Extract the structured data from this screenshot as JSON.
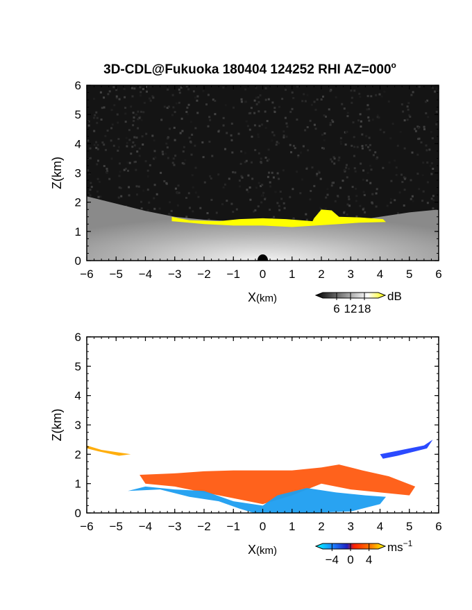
{
  "chart_data": [
    {
      "type": "heatmap",
      "title": "3D-CDL@Fukuoka 180404 124252 RHI AZ=000",
      "title_degree": "o",
      "xlabel_main": "X",
      "xlabel_unit": "(km)",
      "ylabel": "Z(km)",
      "xlim": [
        -6,
        6
      ],
      "ylim": [
        0,
        6
      ],
      "xticks": [
        -6,
        -5,
        -4,
        -3,
        -2,
        -1,
        0,
        1,
        2,
        3,
        4,
        5,
        6
      ],
      "yticks": [
        0,
        1,
        2,
        3,
        4,
        5,
        6
      ],
      "background": "#141414",
      "highlight_color": "#ffff00",
      "colorbar": {
        "unit": "dB",
        "ticks": [
          6,
          12,
          18
        ],
        "range": [
          0,
          24
        ],
        "colors": [
          "#000000",
          "#ffffff"
        ]
      },
      "layers": [
        {
          "name": "aerosol-signal",
          "color": "#bdbdbd",
          "polygon": [
            [
              -6,
              2.2
            ],
            [
              -5,
              1.95
            ],
            [
              -4,
              1.7
            ],
            [
              -3,
              1.5
            ],
            [
              -2,
              1.4
            ],
            [
              -1,
              1.35
            ],
            [
              0,
              1.3
            ],
            [
              1,
              1.3
            ],
            [
              2,
              1.3
            ],
            [
              3,
              1.35
            ],
            [
              4,
              1.5
            ],
            [
              5,
              1.65
            ],
            [
              6,
              1.75
            ],
            [
              6,
              0
            ],
            [
              -6,
              0
            ]
          ]
        },
        {
          "name": "cloud-base",
          "color": "#ffff00",
          "polygon": [
            [
              -3.1,
              1.5
            ],
            [
              -2.5,
              1.38
            ],
            [
              -1.5,
              1.35
            ],
            [
              -0.8,
              1.42
            ],
            [
              0,
              1.45
            ],
            [
              0.8,
              1.42
            ],
            [
              1.7,
              1.35
            ],
            [
              1.75,
              1.45
            ],
            [
              2.0,
              1.75
            ],
            [
              2.35,
              1.72
            ],
            [
              2.6,
              1.5
            ],
            [
              3.3,
              1.48
            ],
            [
              4.1,
              1.42
            ],
            [
              4.2,
              1.32
            ],
            [
              3.3,
              1.3
            ],
            [
              2.6,
              1.25
            ],
            [
              1.8,
              1.2
            ],
            [
              1.0,
              1.15
            ],
            [
              0,
              1.2
            ],
            [
              -1.0,
              1.2
            ],
            [
              -2.0,
              1.25
            ],
            [
              -3.1,
              1.35
            ]
          ]
        }
      ]
    },
    {
      "type": "heatmap",
      "xlabel_main": "X",
      "xlabel_unit": "(km)",
      "ylabel": "Z(km)",
      "xlim": [
        -6,
        6
      ],
      "ylim": [
        0,
        6
      ],
      "xticks": [
        -6,
        -5,
        -4,
        -3,
        -2,
        -1,
        0,
        1,
        2,
        3,
        4,
        5,
        6
      ],
      "yticks": [
        0,
        1,
        2,
        3,
        4,
        5,
        6
      ],
      "background": "#ffffff",
      "colorbar": {
        "unit": "ms",
        "unit_exp": "−1",
        "ticks": [
          "−4",
          "0",
          "4"
        ],
        "range": [
          -6,
          6
        ],
        "colors": [
          "#00ffff",
          "#0050ff",
          "#2020c0",
          "#ff2000",
          "#ff8000",
          "#ffff00"
        ]
      },
      "layers": [
        {
          "name": "positive-velocity",
          "color": "#ff5a10",
          "polygon": [
            [
              -4.2,
              1.3
            ],
            [
              -3,
              1.35
            ],
            [
              -2,
              1.42
            ],
            [
              -1,
              1.45
            ],
            [
              0,
              1.45
            ],
            [
              1,
              1.45
            ],
            [
              2,
              1.55
            ],
            [
              2.6,
              1.65
            ],
            [
              3.4,
              1.45
            ],
            [
              4.3,
              1.25
            ],
            [
              5.2,
              0.9
            ],
            [
              5,
              0.6
            ],
            [
              4,
              0.7
            ],
            [
              3,
              0.8
            ],
            [
              2,
              1.0
            ],
            [
              1,
              0.6
            ],
            [
              0,
              0.3
            ],
            [
              -1,
              0.5
            ],
            [
              -2,
              0.7
            ],
            [
              -3,
              0.9
            ],
            [
              -4,
              1.0
            ]
          ]
        },
        {
          "name": "negative-velocity",
          "color": "#1e9ef0",
          "polygon": [
            [
              -4.6,
              0.75
            ],
            [
              -3.5,
              0.8
            ],
            [
              -2.5,
              0.55
            ],
            [
              -1.5,
              0.4
            ],
            [
              -0.8,
              0.15
            ],
            [
              -0.3,
              0
            ],
            [
              1.5,
              0
            ],
            [
              3,
              0.05
            ],
            [
              4,
              0.3
            ],
            [
              4.2,
              0.55
            ],
            [
              3.5,
              0.6
            ],
            [
              2.5,
              0.7
            ],
            [
              1.5,
              0.85
            ],
            [
              0.5,
              0.6
            ],
            [
              0,
              0.25
            ],
            [
              -1,
              0.4
            ],
            [
              -2,
              0.75
            ],
            [
              -3,
              0.8
            ],
            [
              -4,
              0.9
            ]
          ]
        },
        {
          "name": "upper-left-echo",
          "color": "#ffaa00",
          "polygon": [
            [
              -6,
              2.3
            ],
            [
              -5.5,
              2.15
            ],
            [
              -4.5,
              2.0
            ],
            [
              -4.9,
              1.95
            ],
            [
              -5.6,
              2.1
            ],
            [
              -6,
              2.2
            ]
          ]
        },
        {
          "name": "upper-right-echo",
          "color": "#2040ff",
          "polygon": [
            [
              4.0,
              2.0
            ],
            [
              4.5,
              2.1
            ],
            [
              5.5,
              2.3
            ],
            [
              5.8,
              2.5
            ],
            [
              5.6,
              2.2
            ],
            [
              4.6,
              1.95
            ],
            [
              4.1,
              1.85
            ]
          ]
        }
      ]
    }
  ]
}
